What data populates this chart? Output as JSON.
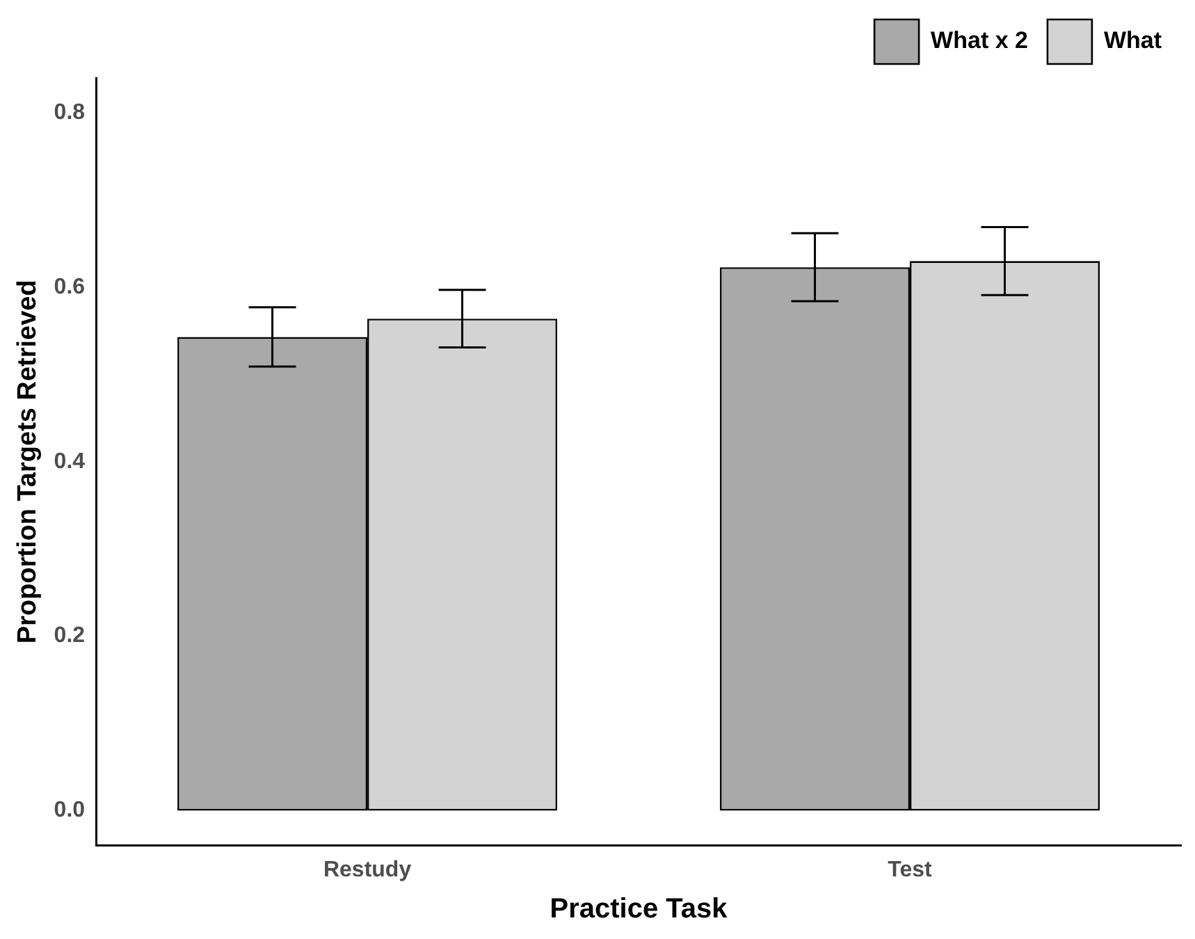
{
  "chart_data": {
    "type": "bar",
    "xlabel": "Practice Task",
    "ylabel": "Proportion Targets Retrieved",
    "categories": [
      "Restudy",
      "Test"
    ],
    "series": [
      {
        "name": "What x 2",
        "color": "#a9a9a9",
        "values": [
          0.543,
          0.623
        ],
        "errors": [
          0.034,
          0.039
        ]
      },
      {
        "name": "What",
        "color": "#d3d3d3",
        "values": [
          0.564,
          0.63
        ],
        "errors": [
          0.033,
          0.039
        ]
      }
    ],
    "ylim": [
      -0.04,
      0.84
    ],
    "yticks": [
      {
        "value": 0,
        "label": "0.0"
      },
      {
        "value": 0.2,
        "label": "0.2"
      },
      {
        "value": 0.4,
        "label": "0.4"
      },
      {
        "value": 0.6,
        "label": "0.6"
      },
      {
        "value": 0.8,
        "label": "0.8"
      }
    ],
    "grid": false,
    "legend": "top right"
  }
}
